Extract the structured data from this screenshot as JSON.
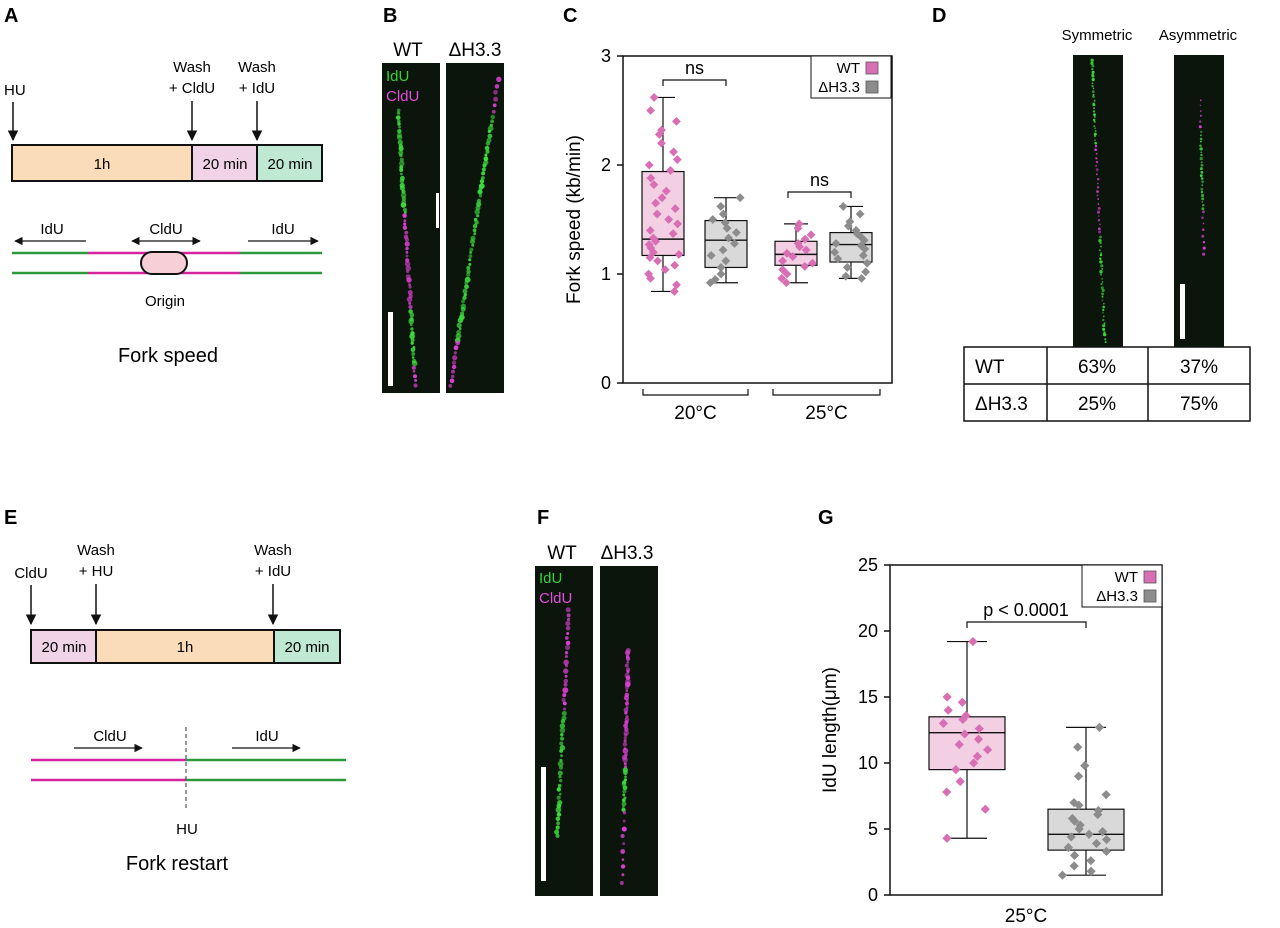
{
  "colors": {
    "pink_fill": "#f2cfe3",
    "pink_marker": "#d86fb4",
    "gray_fill": "#d9d9d9",
    "gray_marker": "#8c8c8c",
    "peach": "#fbdcb8",
    "mint": "#bfe9d2",
    "magenta": "#d6249f",
    "green": "#2a9a3a",
    "idu_text": "#35d335",
    "cldu_text": "#e04fdc"
  },
  "panels": {
    "A": {
      "letter": "A",
      "hu": "HU",
      "wash1_line1": "Wash",
      "wash1_line2": "+ CldU",
      "wash2_line1": "Wash",
      "wash2_line2": "+ IdU",
      "seg1": "1h",
      "seg2": "20 min",
      "seg3": "20 min",
      "idu_left": "IdU",
      "cldu": "CldU",
      "idu_right": "IdU",
      "origin": "Origin",
      "caption": "Fork speed"
    },
    "B": {
      "letter": "B",
      "wt": "WT",
      "dh": "ΔH3.3",
      "idu": "IdU",
      "cldu": "CldU"
    },
    "D": {
      "letter": "D",
      "symmetric": "Symmetric",
      "asymmetric": "Asymmetric",
      "table": [
        {
          "label": "WT",
          "sym": "63%",
          "asym": "37%"
        },
        {
          "label": "ΔH3.3",
          "sym": "25%",
          "asym": "75%"
        }
      ]
    },
    "E": {
      "letter": "E",
      "cldu_top": "CldU",
      "wash1_line1": "Wash",
      "wash1_line2": "+ HU",
      "wash2_line1": "Wash",
      "wash2_line2": "+ IdU",
      "seg1": "20 min",
      "seg2": "1h",
      "seg3": "20 min",
      "cldu_arrow": "CldU",
      "idu_arrow": "IdU",
      "hu_bottom": "HU",
      "caption": "Fork restart"
    },
    "F": {
      "letter": "F",
      "wt": "WT",
      "dh": "ΔH3.3",
      "idu": "IdU",
      "cldu": "CldU"
    }
  },
  "chart_data": [
    {
      "panel": "C",
      "type": "box",
      "ylabel": "Fork speed (kb/min)",
      "ylim": [
        0,
        3
      ],
      "yticks": [
        0,
        1,
        2,
        3
      ],
      "groups": [
        "20°C",
        "25°C"
      ],
      "legend": [
        "WT",
        "ΔH3.3"
      ],
      "annotations": [
        "ns",
        "ns"
      ],
      "boxes": [
        {
          "group": "20°C",
          "series": "WT",
          "min": 0.84,
          "q1": 1.17,
          "median": 1.32,
          "q3": 1.94,
          "max": 2.62,
          "points": [
            2.62,
            2.5,
            2.4,
            2.32,
            2.28,
            2.2,
            2.12,
            2.05,
            2.0,
            1.95,
            1.88,
            1.82,
            1.76,
            1.7,
            1.65,
            1.6,
            1.55,
            1.5,
            1.46,
            1.4,
            1.37,
            1.33,
            1.3,
            1.27,
            1.24,
            1.2,
            1.18,
            1.15,
            1.12,
            1.08,
            1.04,
            1.0,
            0.96,
            0.9,
            0.84
          ]
        },
        {
          "group": "20°C",
          "series": "ΔH3.3",
          "min": 0.92,
          "q1": 1.06,
          "median": 1.31,
          "q3": 1.49,
          "max": 1.7,
          "points": [
            1.7,
            1.62,
            1.55,
            1.5,
            1.47,
            1.42,
            1.38,
            1.33,
            1.28,
            1.22,
            1.17,
            1.12,
            1.06,
            1.0,
            0.95,
            0.92
          ]
        },
        {
          "group": "25°C",
          "series": "WT",
          "min": 0.92,
          "q1": 1.08,
          "median": 1.18,
          "q3": 1.3,
          "max": 1.46,
          "points": [
            1.46,
            1.42,
            1.36,
            1.32,
            1.28,
            1.25,
            1.22,
            1.19,
            1.16,
            1.12,
            1.1,
            1.07,
            1.04,
            1.0,
            0.96,
            0.92
          ]
        },
        {
          "group": "25°C",
          "series": "ΔH3.3",
          "min": 0.96,
          "q1": 1.11,
          "median": 1.27,
          "q3": 1.38,
          "max": 1.62,
          "points": [
            1.62,
            1.55,
            1.48,
            1.44,
            1.4,
            1.37,
            1.34,
            1.31,
            1.28,
            1.26,
            1.23,
            1.2,
            1.17,
            1.14,
            1.1,
            1.06,
            1.02,
            0.98,
            0.96
          ]
        }
      ]
    },
    {
      "panel": "G",
      "type": "box",
      "ylabel": "IdU length(μm)",
      "ylim": [
        0,
        25
      ],
      "yticks": [
        0,
        5,
        10,
        15,
        20,
        25
      ],
      "xlabel": "25°C",
      "legend": [
        "WT",
        "ΔH3.3"
      ],
      "annotation": "p < 0.0001",
      "boxes": [
        {
          "series": "WT",
          "min": 4.3,
          "q1": 9.5,
          "median": 12.3,
          "q3": 13.5,
          "max": 19.2,
          "points": [
            19.2,
            15.0,
            14.6,
            14.0,
            13.6,
            13.3,
            13.0,
            12.6,
            12.2,
            11.8,
            11.4,
            11.0,
            10.5,
            10.0,
            9.5,
            8.6,
            7.8,
            6.5,
            4.3
          ]
        },
        {
          "series": "ΔH3.3",
          "min": 1.5,
          "q1": 3.4,
          "median": 4.6,
          "q3": 6.5,
          "max": 12.7,
          "points": [
            12.7,
            11.2,
            9.8,
            9.0,
            7.6,
            7.0,
            6.8,
            6.4,
            6.1,
            5.8,
            5.6,
            5.3,
            5.0,
            4.8,
            4.6,
            4.4,
            4.2,
            3.9,
            3.6,
            3.3,
            3.0,
            2.6,
            2.2,
            1.8,
            1.5
          ]
        }
      ]
    }
  ]
}
